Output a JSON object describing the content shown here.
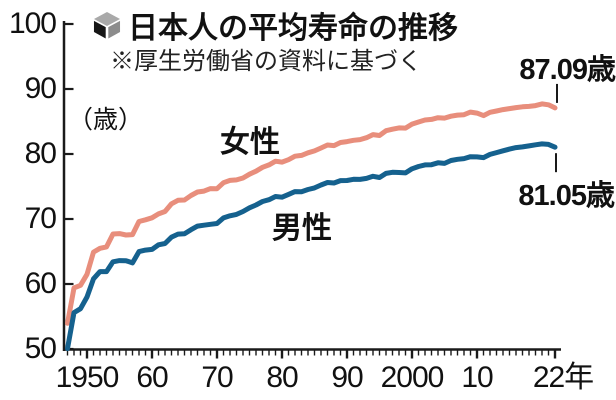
{
  "header": {
    "icon": "cube-icon",
    "title": "日本人の平均寿命の推移",
    "subtitle": "※厚生労働省の資料に基づく"
  },
  "axis": {
    "unit_label": "（歳）",
    "y_ticks": [
      "100",
      "90",
      "80",
      "70",
      "60",
      "50"
    ],
    "x_ticks": [
      "1950",
      "60",
      "70",
      "80",
      "90",
      "2000",
      "10",
      "22年"
    ]
  },
  "annotations": {
    "female_label": "女性",
    "male_label": "男性",
    "female_end_value": "87.09歳",
    "male_end_value": "81.05歳"
  },
  "colors": {
    "female_line": "#e88e7c",
    "male_line": "#15618e",
    "axis": "#1a1a1a",
    "text": "#111111"
  },
  "chart_data": {
    "type": "line",
    "title": "日本人の平均寿命の推移",
    "source_note": "※厚生労働省の資料に基づく",
    "ylabel": "歳",
    "ylim": [
      50,
      100
    ],
    "xlim": [
      1947,
      2022
    ],
    "grid": false,
    "legend_position": "inline",
    "x": [
      1947,
      1948,
      1949,
      1950,
      1951,
      1952,
      1953,
      1954,
      1955,
      1956,
      1957,
      1958,
      1959,
      1960,
      1961,
      1962,
      1963,
      1964,
      1965,
      1966,
      1967,
      1968,
      1969,
      1970,
      1971,
      1972,
      1973,
      1974,
      1975,
      1976,
      1977,
      1978,
      1979,
      1980,
      1981,
      1982,
      1983,
      1984,
      1985,
      1986,
      1987,
      1988,
      1989,
      1990,
      1991,
      1992,
      1993,
      1994,
      1995,
      1996,
      1997,
      1998,
      1999,
      2000,
      2001,
      2002,
      2003,
      2004,
      2005,
      2006,
      2007,
      2008,
      2009,
      2010,
      2011,
      2012,
      2013,
      2014,
      2015,
      2016,
      2017,
      2018,
      2019,
      2020,
      2021,
      2022
    ],
    "series": [
      {
        "name": "女性",
        "color": "#e88e7c",
        "end_label": "87.09歳",
        "values": [
          53.96,
          59.4,
          59.8,
          61.5,
          64.9,
          65.5,
          65.7,
          67.69,
          67.75,
          67.54,
          67.6,
          69.61,
          69.88,
          70.19,
          70.79,
          71.16,
          72.34,
          72.87,
          72.92,
          73.61,
          74.15,
          74.3,
          74.67,
          74.66,
          75.58,
          75.94,
          76.02,
          76.31,
          76.89,
          77.35,
          77.95,
          78.33,
          78.89,
          78.76,
          79.13,
          79.66,
          79.78,
          80.18,
          80.48,
          80.93,
          81.39,
          81.3,
          81.77,
          81.9,
          82.11,
          82.22,
          82.51,
          82.98,
          82.85,
          83.59,
          83.82,
          84.01,
          83.99,
          84.6,
          84.93,
          85.23,
          85.33,
          85.59,
          85.52,
          85.81,
          85.99,
          86.05,
          86.44,
          86.3,
          85.9,
          86.41,
          86.61,
          86.83,
          86.99,
          87.14,
          87.26,
          87.32,
          87.45,
          87.71,
          87.57,
          87.09
        ]
      },
      {
        "name": "男性",
        "color": "#15618e",
        "end_label": "81.05歳",
        "values": [
          50.06,
          55.6,
          56.2,
          58.0,
          60.8,
          61.9,
          61.9,
          63.41,
          63.6,
          63.59,
          63.24,
          64.98,
          65.21,
          65.32,
          66.03,
          66.23,
          67.21,
          67.67,
          67.74,
          68.35,
          68.91,
          69.05,
          69.18,
          69.31,
          70.17,
          70.5,
          70.7,
          71.16,
          71.73,
          72.15,
          72.69,
          72.97,
          73.46,
          73.35,
          73.79,
          74.22,
          74.2,
          74.54,
          74.78,
          75.23,
          75.61,
          75.54,
          75.91,
          75.92,
          76.11,
          76.09,
          76.25,
          76.57,
          76.38,
          77.01,
          77.19,
          77.16,
          77.1,
          77.72,
          78.07,
          78.32,
          78.36,
          78.64,
          78.56,
          79.0,
          79.19,
          79.29,
          79.59,
          79.55,
          79.44,
          79.94,
          80.21,
          80.5,
          80.75,
          80.98,
          81.09,
          81.25,
          81.41,
          81.56,
          81.47,
          81.05
        ]
      }
    ]
  }
}
